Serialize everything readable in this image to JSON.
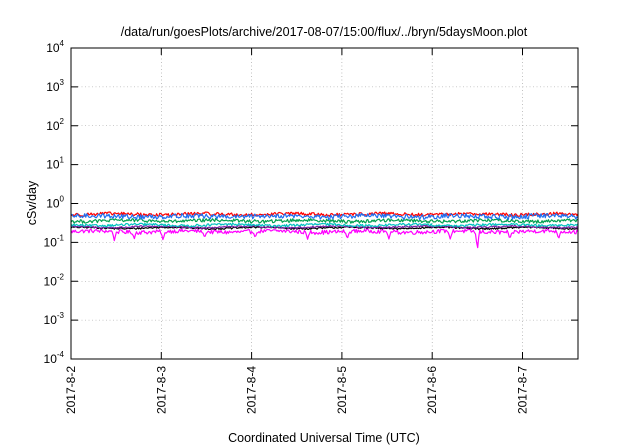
{
  "chart_data": {
    "type": "line",
    "title": "/data/run/goesPlots/archive/2017-08-07/15:00/flux/../bryn/5daysMoon.plot",
    "xlabel": "Coordinated Universal Time (UTC)",
    "ylabel": "cSv/day",
    "yscale": "log",
    "ylim": [
      0.0001,
      10000
    ],
    "xlim": [
      "2017-08-02 00:00",
      "2017-08-07 15:00"
    ],
    "grid": true,
    "y_ticks": [
      {
        "base": "10",
        "exp": "-4",
        "value": 0.0001
      },
      {
        "base": "10",
        "exp": "-3",
        "value": 0.001
      },
      {
        "base": "10",
        "exp": "-2",
        "value": 0.01
      },
      {
        "base": "10",
        "exp": "-1",
        "value": 0.1
      },
      {
        "base": "10",
        "exp": "0",
        "value": 1
      },
      {
        "base": "10",
        "exp": "1",
        "value": 10
      },
      {
        "base": "10",
        "exp": "2",
        "value": 100
      },
      {
        "base": "10",
        "exp": "3",
        "value": 1000
      },
      {
        "base": "10",
        "exp": "4",
        "value": 10000
      }
    ],
    "x_ticks": [
      "2017-8-2",
      "2017-8-3",
      "2017-8-4",
      "2017-8-5",
      "2017-8-6",
      "2017-8-7"
    ],
    "series": [
      {
        "color": "#ff00ff",
        "base": 0.19,
        "noise": 0.12,
        "dips": [
          {
            "at": 0.48,
            "depth": 0.11
          },
          {
            "at": 0.7,
            "depth": 0.12
          },
          {
            "at": 1.02,
            "depth": 0.11
          },
          {
            "at": 1.48,
            "depth": 0.13
          },
          {
            "at": 2.04,
            "depth": 0.13
          },
          {
            "at": 2.62,
            "depth": 0.12
          },
          {
            "at": 3.06,
            "depth": 0.12
          },
          {
            "at": 3.52,
            "depth": 0.12
          },
          {
            "at": 4.2,
            "depth": 0.12
          },
          {
            "at": 4.5,
            "depth": 0.055
          },
          {
            "at": 4.86,
            "depth": 0.12
          },
          {
            "at": 5.4,
            "depth": 0.12
          }
        ]
      },
      {
        "color": "#000000",
        "base": 0.235,
        "noise": 0.05,
        "dips": []
      },
      {
        "color": "#7a1fa2",
        "base": 0.25,
        "noise": 0.05,
        "dips": []
      },
      {
        "color": "#00c0c0",
        "base": 0.28,
        "noise": 0.07,
        "dips": []
      },
      {
        "color": "#00a050",
        "base": 0.36,
        "noise": 0.1,
        "dips": []
      },
      {
        "color": "#ff0000",
        "base": 0.53,
        "noise": 0.1,
        "dips": []
      },
      {
        "color": "#1e6ff0",
        "base": 0.47,
        "noise": 0.14,
        "dips": []
      }
    ]
  }
}
